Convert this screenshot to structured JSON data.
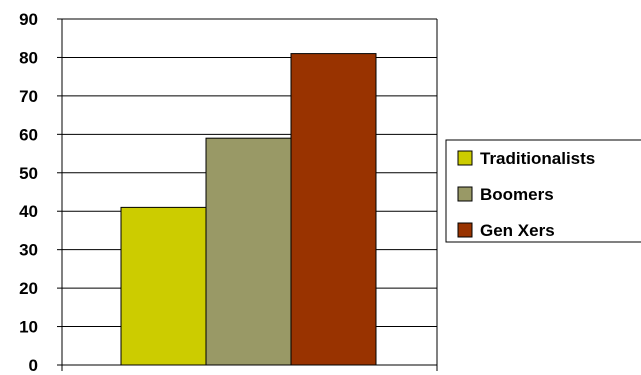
{
  "chart_data": {
    "type": "bar",
    "categories": [
      ""
    ],
    "series": [
      {
        "name": "Traditionalists",
        "values": [
          41
        ],
        "color": "#cccc00"
      },
      {
        "name": "Boomers",
        "values": [
          59
        ],
        "color": "#999966"
      },
      {
        "name": "Gen Xers",
        "values": [
          81
        ],
        "color": "#993300"
      }
    ],
    "ylim": [
      0,
      90
    ],
    "yticks": [
      0,
      10,
      20,
      30,
      40,
      50,
      60,
      70,
      80,
      90
    ],
    "grid": true,
    "legend": "right"
  }
}
